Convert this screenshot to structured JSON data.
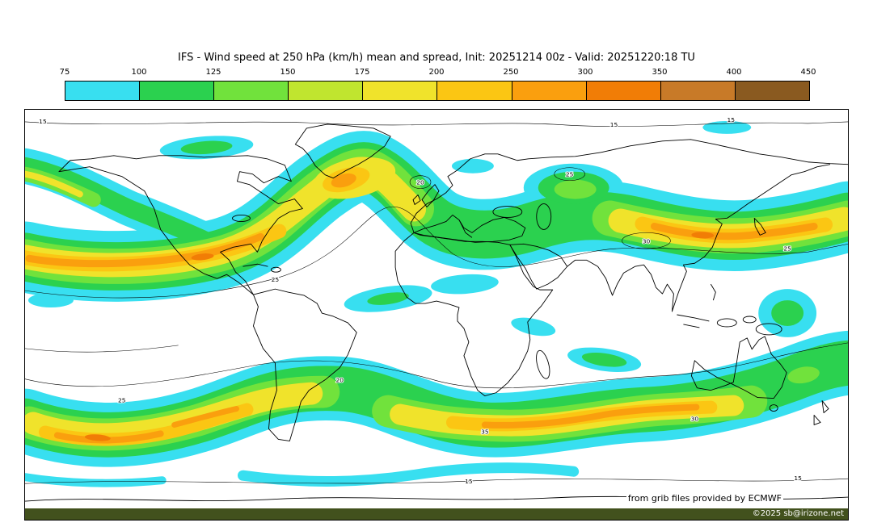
{
  "header": {
    "title": "IFS - Wind speed at 250 hPa (km/h) mean and spread, Init: 20251214 00z - Valid: 20251220:18 TU"
  },
  "colorbar": {
    "units": "km/h",
    "ticks": [
      "75",
      "100",
      "125",
      "150",
      "175",
      "200",
      "250",
      "300",
      "350",
      "400",
      "450"
    ],
    "segments": [
      {
        "range": "75-100",
        "color": "#38dff0"
      },
      {
        "range": "100-125",
        "color": "#2bd14f"
      },
      {
        "range": "125-150",
        "color": "#71e23c"
      },
      {
        "range": "150-175",
        "color": "#c0e52f"
      },
      {
        "range": "175-200",
        "color": "#f0e32b"
      },
      {
        "range": "200-250",
        "color": "#fbc613"
      },
      {
        "range": "250-300",
        "color": "#fa9f0e"
      },
      {
        "range": "300-350",
        "color": "#f17d06"
      },
      {
        "range": "350-400",
        "color": "#c87a28"
      },
      {
        "range": "400-450",
        "color": "#8a5a20"
      }
    ]
  },
  "map": {
    "contour_labels": [
      "15",
      "15",
      "15",
      "25",
      "20",
      "25",
      "30",
      "25",
      "20",
      "25",
      "35",
      "30",
      "15",
      "15"
    ]
  },
  "footer": {
    "credit": "from grib files provided by ECMWF",
    "copyright": "©2025 sb@irizone.net",
    "strip_color": "#42511d"
  },
  "chart_data": {
    "type": "heatmap",
    "title": "IFS - Wind speed at 250 hPa (km/h) mean and spread",
    "init": "20251214 00z",
    "valid": "20251220:18 TU",
    "units": "km/h",
    "projection": "equirectangular world map",
    "color_levels": [
      75,
      100,
      125,
      150,
      175,
      200,
      250,
      300,
      350,
      400,
      450
    ],
    "palette": [
      "#38dff0",
      "#2bd14f",
      "#71e23c",
      "#c0e52f",
      "#f0e32b",
      "#fbc613",
      "#fa9f0e",
      "#f17d06",
      "#c87a28",
      "#8a5a20"
    ],
    "spread_contour_values": [
      15,
      20,
      25,
      30,
      35
    ],
    "legend_position": "top",
    "features": [
      "northern-hemisphere jet band with cores above 250 km/h over North America, the North Atlantic and the North Pacific",
      "southern-hemisphere jet band with cores above 250 km/h over the South Atlantic and south Indian Ocean",
      "scattered 75-125 km/h patches in the tropics"
    ]
  }
}
